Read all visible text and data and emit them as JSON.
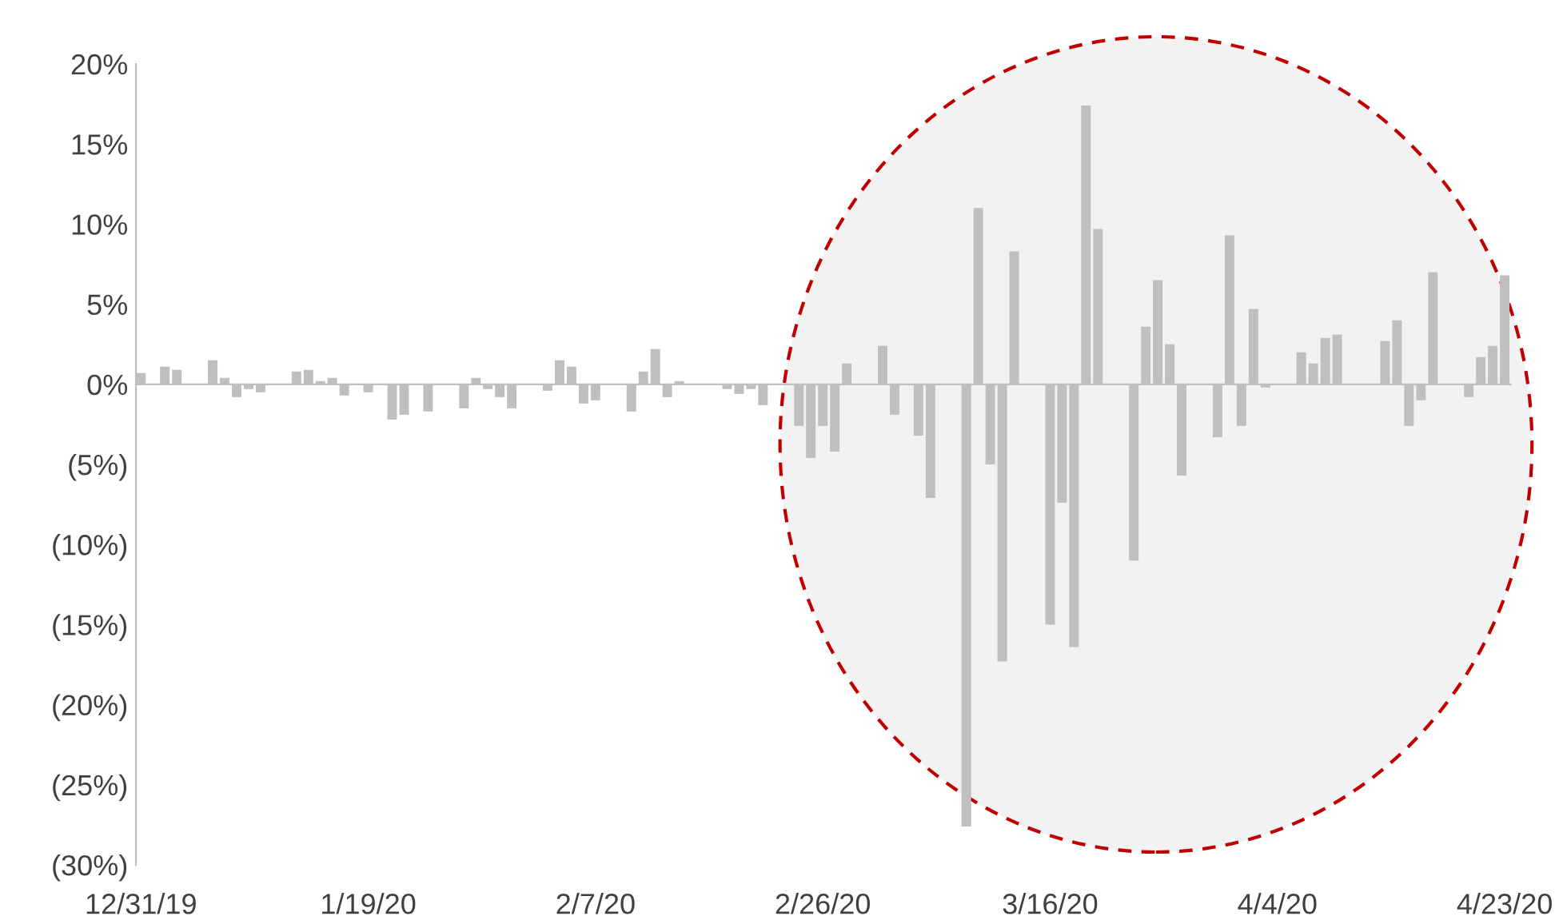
{
  "chart_data": {
    "type": "bar",
    "x": [
      "2019-12-31",
      "2020-01-02",
      "2020-01-03",
      "2020-01-06",
      "2020-01-07",
      "2020-01-08",
      "2020-01-09",
      "2020-01-10",
      "2020-01-13",
      "2020-01-14",
      "2020-01-15",
      "2020-01-16",
      "2020-01-17",
      "2020-01-19",
      "2020-01-21",
      "2020-01-22",
      "2020-01-24",
      "2020-01-27",
      "2020-01-28",
      "2020-01-29",
      "2020-01-30",
      "2020-01-31",
      "2020-02-03",
      "2020-02-04",
      "2020-02-05",
      "2020-02-06",
      "2020-02-07",
      "2020-02-10",
      "2020-02-11",
      "2020-02-12",
      "2020-02-13",
      "2020-02-14",
      "2020-02-18",
      "2020-02-19",
      "2020-02-20",
      "2020-02-21",
      "2020-02-24",
      "2020-02-25",
      "2020-02-26",
      "2020-02-27",
      "2020-02-28",
      "2020-03-02",
      "2020-03-03",
      "2020-03-05",
      "2020-03-06",
      "2020-03-09",
      "2020-03-10",
      "2020-03-11",
      "2020-03-12",
      "2020-03-13",
      "2020-03-16",
      "2020-03-17",
      "2020-03-18",
      "2020-03-19",
      "2020-03-20",
      "2020-03-23",
      "2020-03-24",
      "2020-03-25",
      "2020-03-26",
      "2020-03-27",
      "2020-03-30",
      "2020-03-31",
      "2020-04-01",
      "2020-04-02",
      "2020-04-03",
      "2020-04-06",
      "2020-04-07",
      "2020-04-08",
      "2020-04-09",
      "2020-04-13",
      "2020-04-14",
      "2020-04-15",
      "2020-04-16",
      "2020-04-17",
      "2020-04-20",
      "2020-04-21",
      "2020-04-22",
      "2020-04-23"
    ],
    "values": [
      0.7,
      1.1,
      0.9,
      1.5,
      0.4,
      -0.8,
      -0.3,
      -0.5,
      0.8,
      0.9,
      0.2,
      0.4,
      -0.7,
      -0.5,
      -2.2,
      -1.9,
      -1.7,
      -1.5,
      0.4,
      -0.3,
      -0.8,
      -1.5,
      -0.4,
      1.5,
      1.1,
      -1.2,
      -1.0,
      -1.7,
      0.8,
      2.2,
      -0.8,
      0.2,
      -0.3,
      -0.6,
      -0.3,
      -1.3,
      -2.6,
      -4.6,
      -2.6,
      -4.2,
      1.3,
      2.4,
      -1.9,
      -3.2,
      -7.1,
      -27.6,
      11.0,
      -5.0,
      -17.3,
      8.3,
      -15.0,
      -7.4,
      -16.4,
      17.4,
      9.7,
      -11.0,
      3.6,
      6.5,
      2.5,
      -5.7,
      -3.3,
      9.3,
      -2.6,
      4.7,
      -0.2,
      2.0,
      1.3,
      2.9,
      3.1,
      2.7,
      4.0,
      -2.6,
      -1.0,
      7.0,
      -0.8,
      1.7,
      2.4,
      6.8
    ],
    "color": "#bfbfbf",
    "xlim": [
      "2019-12-30T14:00",
      "2020-04-23T12:00"
    ],
    "xticks": [
      {
        "value": "2019-12-31",
        "label": "12/31/19"
      },
      {
        "value": "2020-01-19",
        "label": "1/19/20"
      },
      {
        "value": "2020-02-07",
        "label": "2/7/20"
      },
      {
        "value": "2020-02-26",
        "label": "2/26/20"
      },
      {
        "value": "2020-03-16",
        "label": "3/16/20"
      },
      {
        "value": "2020-04-04",
        "label": "4/4/20"
      },
      {
        "value": "2020-04-23",
        "label": "4/23/20"
      }
    ],
    "ylim": [
      -30,
      20
    ],
    "yticks": [
      {
        "value": 20,
        "label": "20%"
      },
      {
        "value": 15,
        "label": "15%"
      },
      {
        "value": 10,
        "label": "10%"
      },
      {
        "value": 5,
        "label": "5%"
      },
      {
        "value": 0,
        "label": "0%"
      },
      {
        "value": -5,
        "label": "(5%)"
      },
      {
        "value": -10,
        "label": "(10%)"
      },
      {
        "value": -15,
        "label": "(15%)"
      },
      {
        "value": -20,
        "label": "(20%)"
      },
      {
        "value": -25,
        "label": "(25%)"
      },
      {
        "value": -30,
        "label": "(30%)"
      }
    ]
  }
}
